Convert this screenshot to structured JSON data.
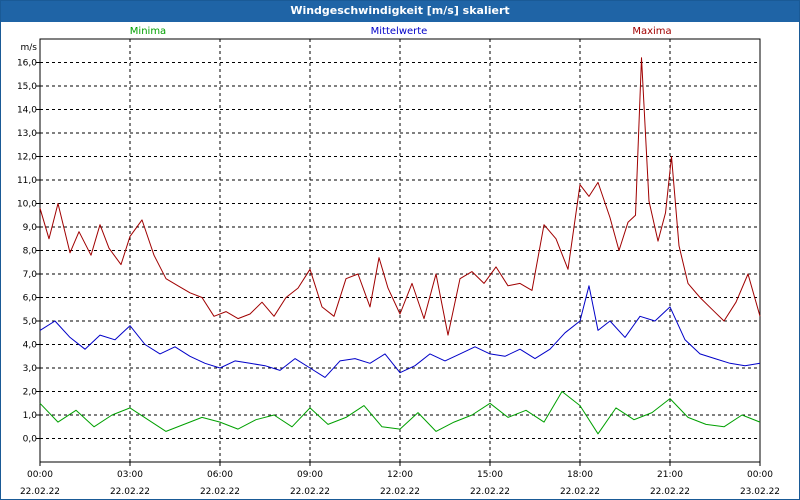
{
  "window": {
    "title": "Windgeschwindigkeit [m/s] skaliert"
  },
  "chart_data": {
    "type": "line",
    "title": "Windgeschwindigkeit [m/s] skaliert",
    "ylabel": "m/s",
    "xlabel": "",
    "ylim": [
      -1.0,
      17.0
    ],
    "y_ticks": [
      "0,0",
      "1,0",
      "2,0",
      "3,0",
      "4,0",
      "5,0",
      "6,0",
      "7,0",
      "8,0",
      "9,0",
      "10,0",
      "11,0",
      "12,0",
      "13,0",
      "14,0",
      "15,0",
      "16,0"
    ],
    "x_ticks": [
      {
        "time": "00:00",
        "date": "22.02.22"
      },
      {
        "time": "03:00",
        "date": "22.02.22"
      },
      {
        "time": "06:00",
        "date": "22.02.22"
      },
      {
        "time": "09:00",
        "date": "22.02.22"
      },
      {
        "time": "12:00",
        "date": "22.02.22"
      },
      {
        "time": "15:00",
        "date": "22.02.22"
      },
      {
        "time": "18:00",
        "date": "22.02.22"
      },
      {
        "time": "21:00",
        "date": "22.02.22"
      },
      {
        "time": "00:00",
        "date": "23.02.22"
      }
    ],
    "x_range_hours": [
      0,
      24
    ],
    "grid": true,
    "legend_position": "top",
    "series": [
      {
        "name": "Minima",
        "color": "#00a000",
        "x_hours": [
          0.0,
          0.6,
          1.2,
          1.8,
          2.4,
          3.0,
          3.6,
          4.2,
          4.8,
          5.4,
          6.0,
          6.6,
          7.2,
          7.8,
          8.4,
          9.0,
          9.6,
          10.2,
          10.8,
          11.4,
          12.0,
          12.6,
          13.2,
          13.8,
          14.4,
          15.0,
          15.6,
          16.2,
          16.8,
          17.4,
          18.0,
          18.6,
          19.2,
          19.8,
          20.4,
          21.0,
          21.6,
          22.2,
          22.8,
          23.4,
          24.0
        ],
        "values": [
          1.5,
          0.7,
          1.2,
          0.5,
          1.0,
          1.3,
          0.8,
          0.3,
          0.6,
          0.9,
          0.7,
          0.4,
          0.8,
          1.0,
          0.5,
          1.3,
          0.6,
          0.9,
          1.4,
          0.5,
          0.4,
          1.1,
          0.3,
          0.7,
          1.0,
          1.5,
          0.9,
          1.2,
          0.7,
          2.0,
          1.4,
          0.2,
          1.3,
          0.8,
          1.1,
          1.7,
          0.9,
          0.6,
          0.5,
          1.0,
          0.7
        ]
      },
      {
        "name": "Mittelwerte",
        "color": "#0000c8",
        "x_hours": [
          0.0,
          0.5,
          1.0,
          1.5,
          2.0,
          2.5,
          3.0,
          3.5,
          4.0,
          4.5,
          5.0,
          5.5,
          6.0,
          6.5,
          7.0,
          7.5,
          8.0,
          8.5,
          9.0,
          9.5,
          10.0,
          10.5,
          11.0,
          11.5,
          12.0,
          12.5,
          13.0,
          13.5,
          14.0,
          14.5,
          15.0,
          15.5,
          16.0,
          16.5,
          17.0,
          17.5,
          18.0,
          18.3,
          18.6,
          19.0,
          19.5,
          20.0,
          20.5,
          21.0,
          21.5,
          22.0,
          22.5,
          23.0,
          23.5,
          24.0
        ],
        "values": [
          4.6,
          5.0,
          4.3,
          3.8,
          4.4,
          4.2,
          4.8,
          4.0,
          3.6,
          3.9,
          3.5,
          3.2,
          3.0,
          3.3,
          3.2,
          3.1,
          2.9,
          3.4,
          3.0,
          2.6,
          3.3,
          3.4,
          3.2,
          3.6,
          2.8,
          3.1,
          3.6,
          3.3,
          3.6,
          3.9,
          3.6,
          3.5,
          3.8,
          3.4,
          3.8,
          4.5,
          5.0,
          6.5,
          4.6,
          5.0,
          4.3,
          5.2,
          5.0,
          5.6,
          4.2,
          3.6,
          3.4,
          3.2,
          3.1,
          3.2
        ]
      },
      {
        "name": "Maxima",
        "color": "#a00000",
        "x_hours": [
          0.0,
          0.3,
          0.6,
          1.0,
          1.3,
          1.7,
          2.0,
          2.3,
          2.7,
          3.0,
          3.4,
          3.8,
          4.2,
          4.6,
          5.0,
          5.4,
          5.8,
          6.2,
          6.6,
          7.0,
          7.4,
          7.8,
          8.2,
          8.6,
          9.0,
          9.4,
          9.8,
          10.2,
          10.6,
          11.0,
          11.3,
          11.6,
          12.0,
          12.4,
          12.8,
          13.2,
          13.6,
          14.0,
          14.4,
          14.8,
          15.2,
          15.6,
          16.0,
          16.4,
          16.8,
          17.2,
          17.6,
          18.0,
          18.3,
          18.6,
          19.0,
          19.3,
          19.6,
          19.85,
          20.05,
          20.3,
          20.6,
          20.85,
          21.05,
          21.3,
          21.6,
          22.0,
          22.4,
          22.8,
          23.2,
          23.6,
          24.0
        ],
        "values": [
          9.8,
          8.5,
          10.0,
          7.9,
          8.8,
          7.8,
          9.1,
          8.1,
          7.4,
          8.6,
          9.3,
          7.8,
          6.8,
          6.5,
          6.2,
          6.0,
          5.2,
          5.4,
          5.1,
          5.3,
          5.8,
          5.2,
          6.0,
          6.4,
          7.2,
          5.6,
          5.2,
          6.8,
          7.0,
          5.6,
          7.7,
          6.4,
          5.3,
          6.6,
          5.1,
          7.0,
          4.4,
          6.8,
          7.1,
          6.6,
          7.3,
          6.5,
          6.6,
          6.3,
          9.1,
          8.5,
          7.2,
          10.8,
          10.3,
          10.9,
          9.4,
          8.0,
          9.2,
          9.5,
          16.2,
          10.1,
          8.4,
          9.6,
          12.0,
          8.2,
          6.6,
          6.0,
          5.5,
          5.0,
          5.8,
          7.0,
          5.2
        ]
      }
    ]
  }
}
